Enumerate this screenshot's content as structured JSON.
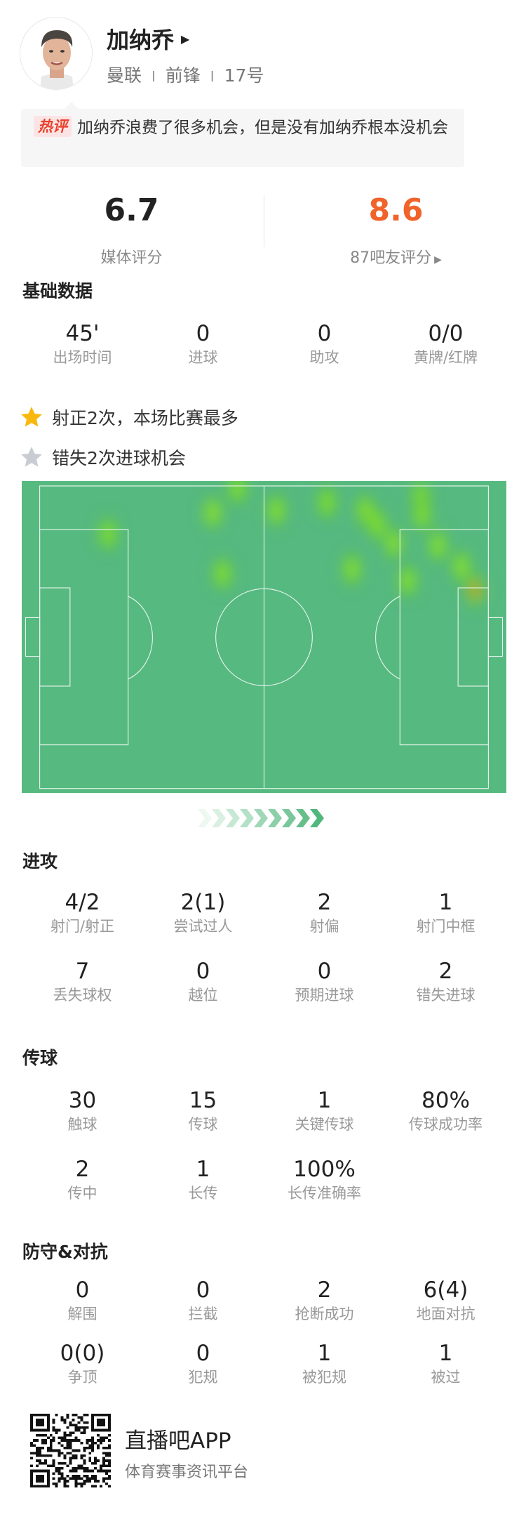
{
  "player": {
    "name": "加纳乔",
    "team": "曼联",
    "position": "前锋",
    "number": "17号",
    "separator": "I"
  },
  "hot_comment": {
    "badge": "热评",
    "text": "加纳乔浪费了很多机会，但是没有加纳乔根本没机会"
  },
  "ratings": {
    "media": {
      "value": "6.7",
      "label": "媒体评分"
    },
    "fans": {
      "value": "8.6",
      "label": "87吧友评分",
      "color": "#f0632a"
    }
  },
  "basic": {
    "title": "基础数据",
    "stats": [
      {
        "value": "45'",
        "label": "出场时间"
      },
      {
        "value": "0",
        "label": "进球"
      },
      {
        "value": "0",
        "label": "助攻"
      },
      {
        "value": "0/0",
        "label": "黄牌/红牌"
      }
    ]
  },
  "highlights": [
    {
      "icon": "star-gold-icon",
      "text": "射正2次，本场比赛最多",
      "color": "#f9b80e"
    },
    {
      "icon": "star-gray-icon",
      "text": "错失2次进球机会",
      "color": "#c9ccd3"
    }
  ],
  "heatmap": {
    "pitch_color": "#56b980",
    "attack_direction": "right",
    "points_m": [
      {
        "x": 16.0,
        "y": 10.8,
        "w": 0.45
      },
      {
        "x": 40.5,
        "y": 6.0,
        "w": 0.8
      },
      {
        "x": 46.3,
        "y": 0.5,
        "w": 0.5
      },
      {
        "x": 55.4,
        "y": 5.5,
        "w": 0.65
      },
      {
        "x": 67.2,
        "y": 3.7,
        "w": 0.45
      },
      {
        "x": 76.2,
        "y": 5.5,
        "w": 0.65
      },
      {
        "x": 79.0,
        "y": 8.7,
        "w": 0.6
      },
      {
        "x": 89.2,
        "y": 2.4,
        "w": 0.65
      },
      {
        "x": 89.5,
        "y": 6.5,
        "w": 0.55
      },
      {
        "x": 82.9,
        "y": 12.9,
        "w": 0.7
      },
      {
        "x": 93.2,
        "y": 13.4,
        "w": 0.7
      },
      {
        "x": 73.1,
        "y": 18.7,
        "w": 0.6
      },
      {
        "x": 86.1,
        "y": 21.3,
        "w": 0.6
      },
      {
        "x": 42.8,
        "y": 19.7,
        "w": 0.6
      },
      {
        "x": 98.7,
        "y": 18.1,
        "w": 0.7
      },
      {
        "x": 101.9,
        "y": 23.4,
        "w": 1.0
      }
    ]
  },
  "attack": {
    "title": "进攻",
    "stats": [
      {
        "value": "4/2",
        "label": "射门/射正"
      },
      {
        "value": "2(1)",
        "label": "尝试过人"
      },
      {
        "value": "2",
        "label": "射偏"
      },
      {
        "value": "1",
        "label": "射门中框"
      },
      {
        "value": "7",
        "label": "丢失球权"
      },
      {
        "value": "0",
        "label": "越位"
      },
      {
        "value": "0",
        "label": "预期进球"
      },
      {
        "value": "2",
        "label": "错失进球"
      }
    ]
  },
  "passing": {
    "title": "传球",
    "stats": [
      {
        "value": "30",
        "label": "触球"
      },
      {
        "value": "15",
        "label": "传球"
      },
      {
        "value": "1",
        "label": "关键传球"
      },
      {
        "value": "80%",
        "label": "传球成功率"
      },
      {
        "value": "2",
        "label": "传中"
      },
      {
        "value": "1",
        "label": "长传"
      },
      {
        "value": "100%",
        "label": "长传准确率"
      }
    ]
  },
  "defense": {
    "title": "防守&对抗",
    "stats": [
      {
        "value": "0",
        "label": "解围"
      },
      {
        "value": "0",
        "label": "拦截"
      },
      {
        "value": "2",
        "label": "抢断成功"
      },
      {
        "value": "6(4)",
        "label": "地面对抗"
      },
      {
        "value": "0(0)",
        "label": "争顶"
      },
      {
        "value": "0",
        "label": "犯规"
      },
      {
        "value": "1",
        "label": "被犯规"
      },
      {
        "value": "1",
        "label": "被过"
      }
    ]
  },
  "footer": {
    "app_name": "直播吧APP",
    "slogan": "体育赛事资讯平台"
  }
}
